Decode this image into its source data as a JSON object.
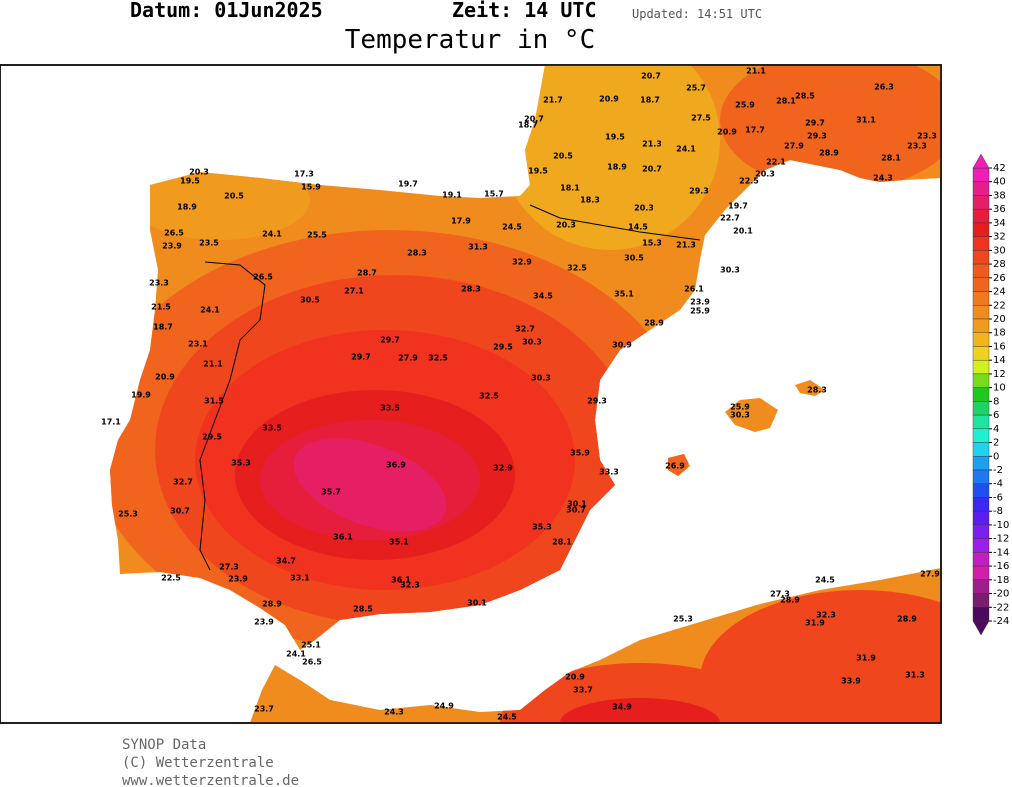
{
  "header": {
    "date": "Datum: 01Jun2025",
    "time": "Zeit: 14 UTC",
    "updated": "Updated: 14:51 UTC",
    "title": "Temperatur in °C"
  },
  "legend": {
    "ticks": [
      42,
      40,
      38,
      36,
      34,
      32,
      30,
      28,
      26,
      24,
      22,
      20,
      18,
      16,
      14,
      12,
      10,
      8,
      6,
      4,
      2,
      0,
      -2,
      -4,
      -6,
      -8,
      -10,
      -12,
      -14,
      -16,
      -18,
      -20,
      -22,
      -24
    ],
    "colors": [
      "#f01eb4",
      "#e61e8c",
      "#e61e64",
      "#e61e3c",
      "#e61e1e",
      "#f0321e",
      "#f0461e",
      "#f05a1e",
      "#f0641e",
      "#f0781e",
      "#f08c1e",
      "#f09a1e",
      "#f0b41e",
      "#f0d21e",
      "#d2f01e",
      "#78dc1e",
      "#1ec81e",
      "#1ed264",
      "#1ee6a0",
      "#1ef0d2",
      "#1ed2f0",
      "#1ea0f0",
      "#1e78f0",
      "#1e50f0",
      "#3c28f0",
      "#5a1ef0",
      "#7a1ff0",
      "#9b1fe8",
      "#c21ec2",
      "#d21eaa",
      "#a01e8c",
      "#781e6e",
      "#4b0a5a"
    ]
  },
  "stations": [
    "20.7",
    "21.1",
    "26.3",
    "25.7",
    "21.7",
    "20.9",
    "18.7",
    "28.1",
    "28.5",
    "20.7",
    "18.7",
    "25.9",
    "27.5",
    "31.1",
    "20.9",
    "17.7",
    "19.5",
    "21.3",
    "24.1",
    "29.7",
    "29.3",
    "23.3",
    "23.3",
    "27.9",
    "28.9",
    "20.5",
    "22.1",
    "28.1",
    "18.9",
    "20.7",
    "19.5",
    "20.3",
    "24.3",
    "22.5",
    "29.3",
    "18.1",
    "18.3",
    "19.7",
    "20.3",
    "22.7",
    "20.1",
    "14.5",
    "15.3",
    "21.3",
    "30.3",
    "30.5",
    "20.3",
    "19.5",
    "17.3",
    "19.7",
    "15.9",
    "20.5",
    "19.1",
    "15.7",
    "18.9",
    "17.9",
    "24.5",
    "20.3",
    "26.5",
    "24.1",
    "25.5",
    "23.9",
    "23.5",
    "31.3",
    "28.3",
    "32.9",
    "32.5",
    "26.5",
    "28.7",
    "23.3",
    "27.1",
    "28.3",
    "34.5",
    "35.1",
    "26.1",
    "30.5",
    "23.9",
    "25.9",
    "21.5",
    "24.1",
    "18.7",
    "32.7",
    "28.9",
    "29.7",
    "23.1",
    "30.3",
    "29.5",
    "30.9",
    "29.7",
    "27.9",
    "32.5",
    "21.1",
    "20.9",
    "30.3",
    "19.9",
    "31.5",
    "32.5",
    "29.3",
    "33.5",
    "17.1",
    "33.5",
    "29.5",
    "35.9",
    "35.3",
    "36.9",
    "32.9",
    "33.3",
    "32.7",
    "35.7",
    "30.1",
    "30.7",
    "25.3",
    "30.7",
    "35.3",
    "28.1",
    "36.1",
    "35.1",
    "34.7",
    "27.3",
    "22.5",
    "23.9",
    "33.1",
    "36.1",
    "32.3",
    "28.9",
    "28.5",
    "23.9",
    "30.1",
    "25.1",
    "24.1",
    "26.5",
    "25.9",
    "30.3",
    "28.3",
    "26.9",
    "24.5",
    "27.9",
    "27.3",
    "28.9",
    "32.3",
    "31.9",
    "28.9",
    "25.3",
    "31.9",
    "31.3",
    "33.9",
    "20.9",
    "33.7",
    "34.9",
    "23.7",
    "24.3",
    "24.9",
    "24.5"
  ],
  "footer": {
    "line1": "SYNOP Data",
    "line2": "(C) Wetterzentrale",
    "line3": "www.wetterzentrale.de"
  }
}
